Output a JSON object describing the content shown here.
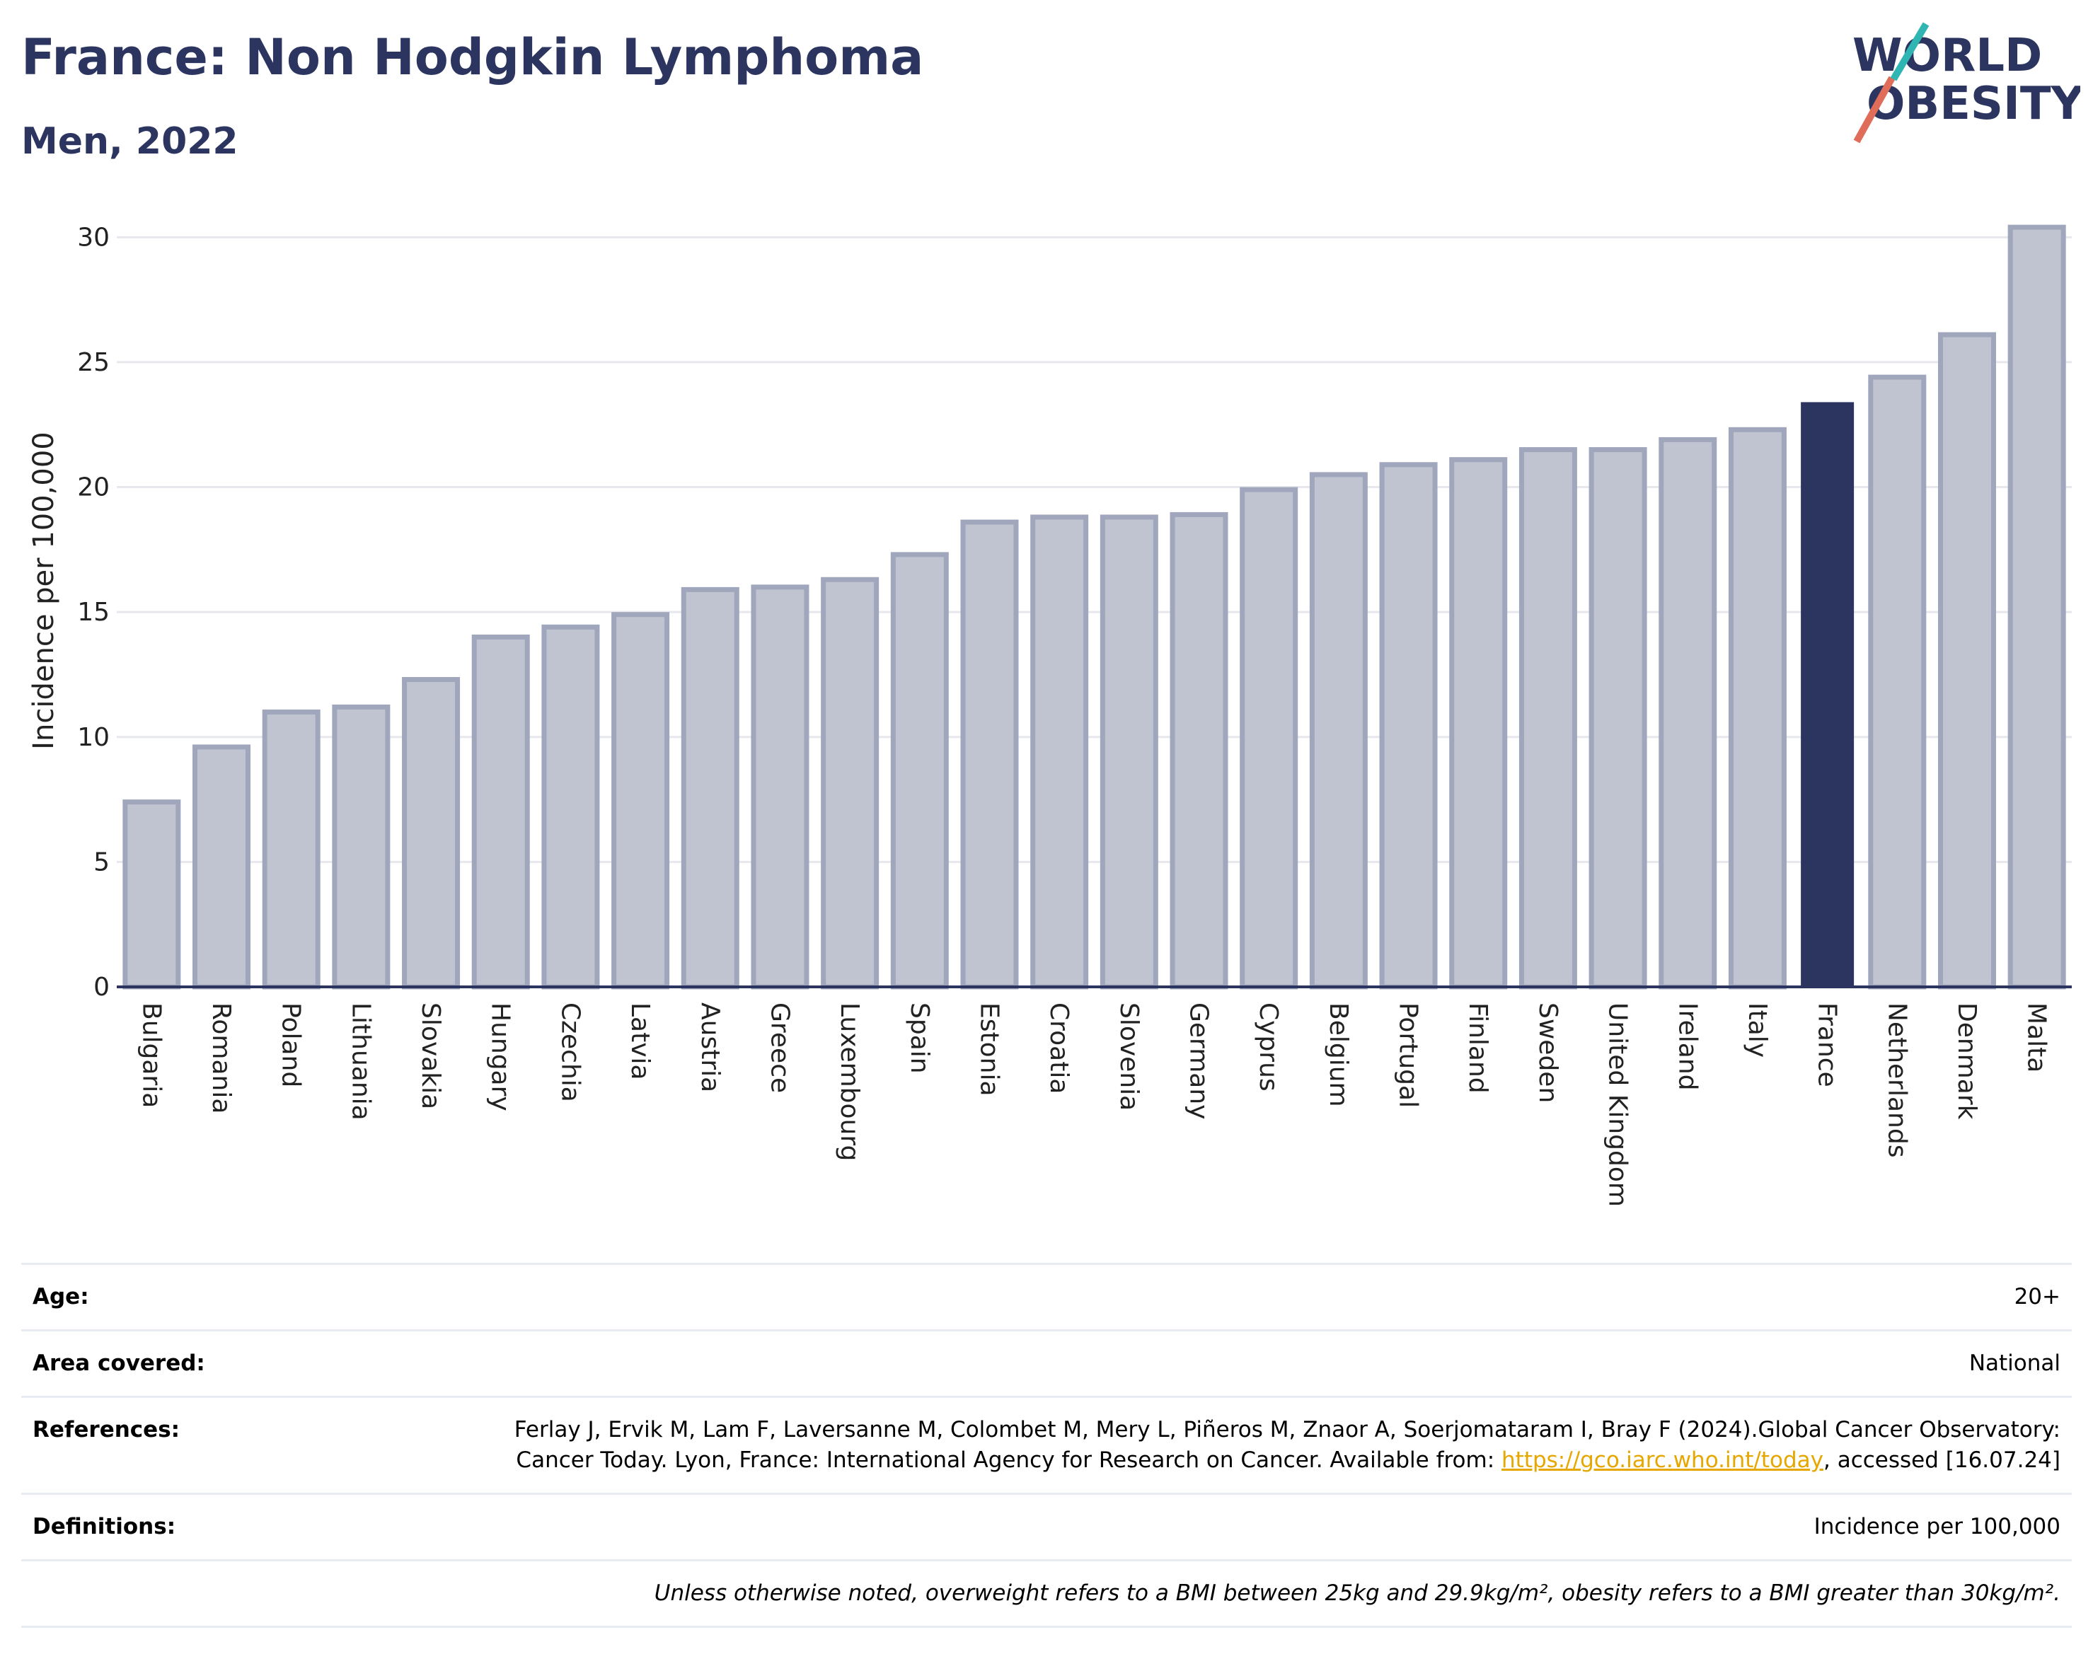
{
  "header": {
    "title": "France: Non Hodgkin Lymphoma",
    "subtitle": "Men, 2022"
  },
  "logo": {
    "line1": "WORLD",
    "line2": "OBESITY"
  },
  "chart_data": {
    "type": "bar",
    "ylabel": "Incidence per 100,000",
    "xlabel": "",
    "ylim": [
      0,
      31
    ],
    "yticks": [
      0,
      5,
      10,
      15,
      20,
      25,
      30
    ],
    "grid": true,
    "highlight": "France",
    "colors": {
      "bar": "#c0c4d0",
      "bar_border": "#a0a6bb",
      "highlight": "#2b3560",
      "axis": "#2b3560",
      "grid": "#e6e8ee"
    },
    "categories": [
      "Bulgaria",
      "Romania",
      "Poland",
      "Lithuania",
      "Slovakia",
      "Hungary",
      "Czechia",
      "Latvia",
      "Austria",
      "Greece",
      "Luxembourg",
      "Spain",
      "Estonia",
      "Croatia",
      "Slovenia",
      "Germany",
      "Cyprus",
      "Belgium",
      "Portugal",
      "Finland",
      "Sweden",
      "United Kingdom",
      "Ireland",
      "Italy",
      "France",
      "Netherlands",
      "Denmark",
      "Malta"
    ],
    "values": [
      7.4,
      9.6,
      11.0,
      11.2,
      12.3,
      14.0,
      14.4,
      14.9,
      15.9,
      16.0,
      16.3,
      17.3,
      18.6,
      18.8,
      18.8,
      18.9,
      19.9,
      20.5,
      20.9,
      21.1,
      21.5,
      21.5,
      21.9,
      22.3,
      23.4,
      24.4,
      26.1,
      30.4
    ]
  },
  "info": {
    "age": {
      "label": "Age:",
      "value": "20+"
    },
    "area": {
      "label": "Area covered:",
      "value": "National"
    },
    "references": {
      "label": "References:",
      "text_before": "Ferlay J, Ervik M, Lam F, Laversanne M, Colombet M, Mery L, Piñeros M, Znaor A, Soerjomataram I, Bray F (2024).Global Cancer Observatory: Cancer Today. Lyon, France: International Agency for Research on Cancer. Available from: ",
      "link": "https://gco.iarc.who.int/today",
      "text_after": ", accessed [16.07.24]"
    },
    "definitions": {
      "label": "Definitions:",
      "value": "Incidence per 100,000"
    },
    "note": "Unless otherwise noted, overweight refers to a BMI between 25kg and 29.9kg/m², obesity refers to a BMI greater than 30kg/m²."
  }
}
